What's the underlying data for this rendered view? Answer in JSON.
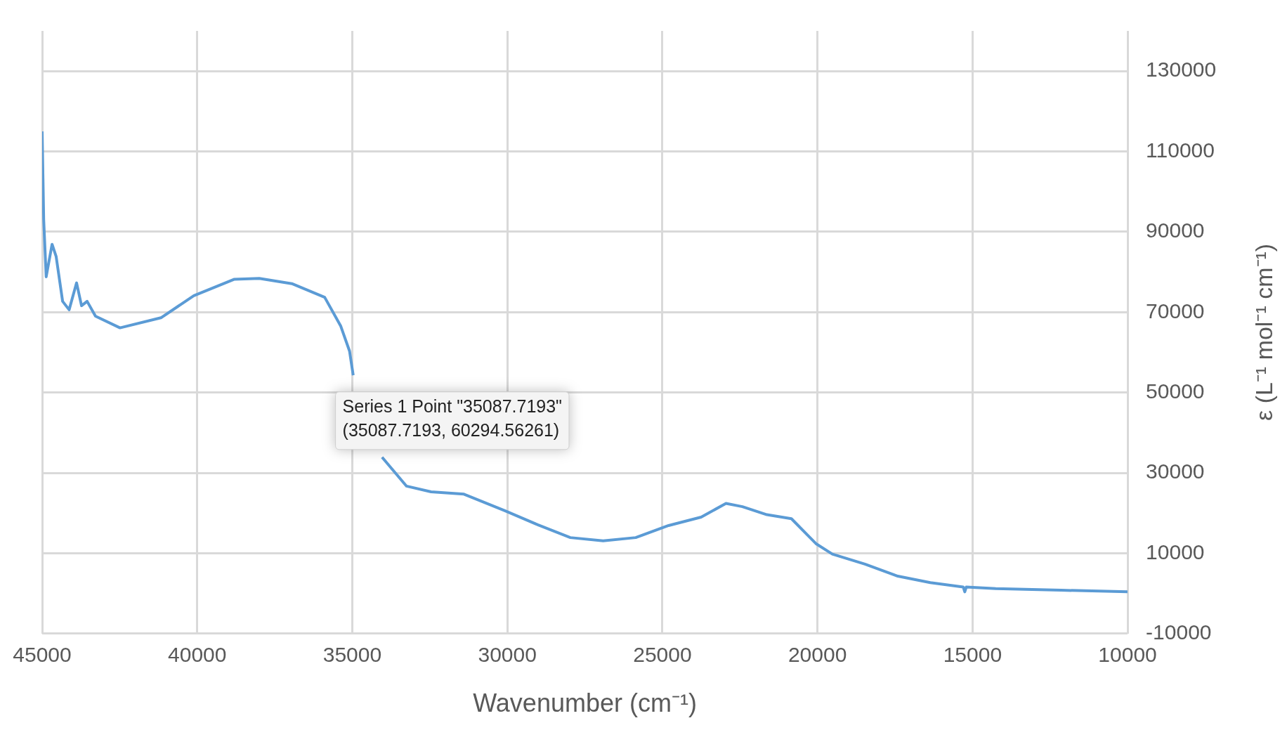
{
  "chart_data": {
    "type": "line",
    "xlabel": "Wavenumber (cm⁻¹)",
    "ylabel": "ε (L⁻¹ mol⁻¹ cm⁻¹)",
    "xlim": [
      45000,
      10000
    ],
    "xticks": [
      45000,
      40000,
      35000,
      30000,
      25000,
      20000,
      15000,
      10000
    ],
    "ylim": [
      -10000,
      140000
    ],
    "yticks": [
      -10000,
      10000,
      30000,
      50000,
      70000,
      90000,
      110000,
      130000
    ],
    "grid": true,
    "legend": false,
    "marker": "none",
    "line_style": "solid",
    "series": [
      {
        "color": "#5b9bd5",
        "x": [
          45000,
          44950,
          44870,
          44680,
          44550,
          44340,
          44130,
          43890,
          43730,
          43550,
          43280,
          42490,
          41170,
          40110,
          38800,
          38000,
          36950,
          35890,
          35370,
          35087.7193,
          34970,
          34570,
          34040,
          33250,
          32460,
          31400,
          30080,
          29020,
          27970,
          26910,
          25860,
          24800,
          23750,
          22950,
          22420,
          21630,
          20840,
          20050,
          19520,
          18470,
          17410,
          16360,
          15300,
          15250,
          15200,
          14250,
          12140,
          10000
        ],
        "values": [
          115000,
          93000,
          78800,
          86900,
          83900,
          72700,
          70600,
          77300,
          71600,
          72700,
          69000,
          66100,
          68600,
          74100,
          78200,
          78400,
          77100,
          73700,
          66500,
          60300,
          54300,
          null,
          33900,
          26700,
          25300,
          24700,
          20600,
          17100,
          13900,
          13100,
          13900,
          16900,
          19000,
          22400,
          21600,
          19600,
          18600,
          12400,
          9800,
          7300,
          4300,
          2700,
          1600,
          400,
          1600,
          1200,
          800,
          400
        ]
      }
    ],
    "annotations": [
      {
        "text": "Series 1 Point \"35087.7193\"\n(35087.7193, 60294.56261)",
        "x": 35087.7193,
        "y": 60294.56261
      }
    ]
  }
}
